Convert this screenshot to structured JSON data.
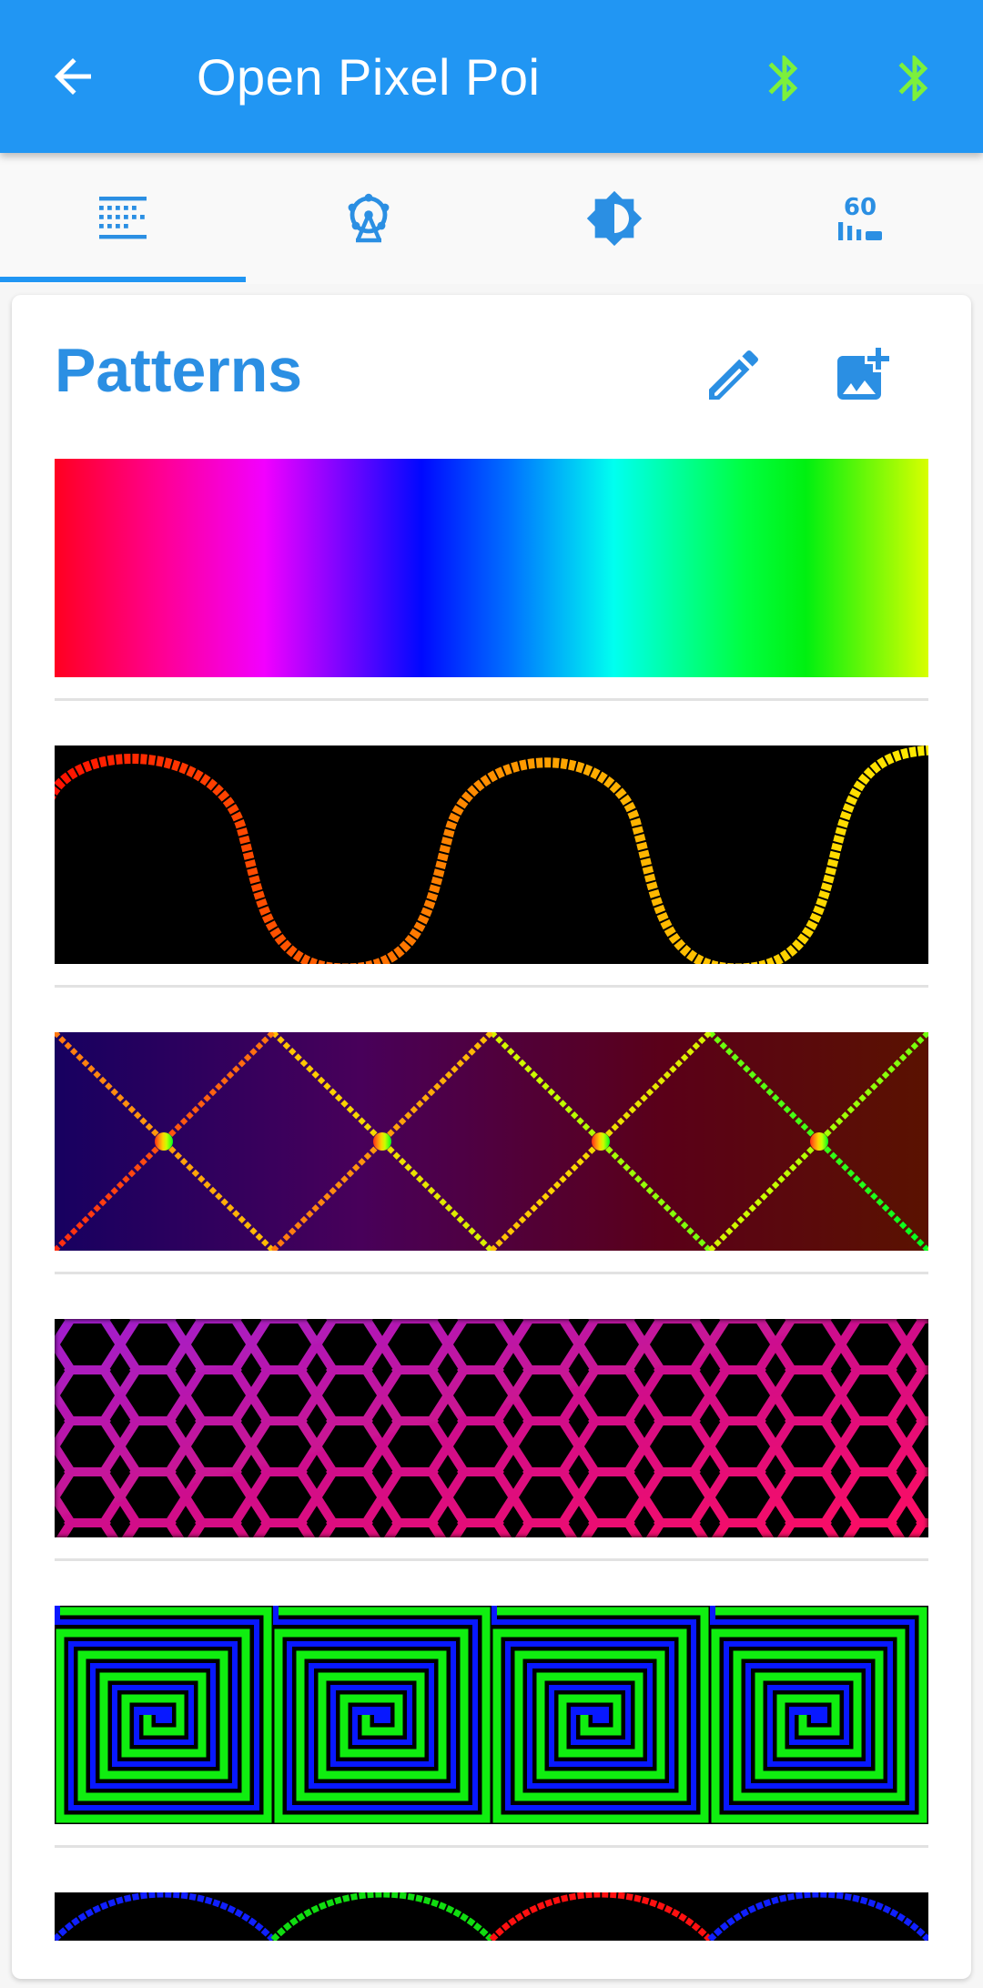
{
  "appbar": {
    "title": "Open Pixel Poi",
    "back_icon": "arrow-back-icon",
    "status_icons": [
      "bluetooth-icon",
      "bluetooth-icon"
    ],
    "status_color": "#7cf03c",
    "background": "#2196f3"
  },
  "tabs": [
    {
      "icon": "patterns-icon",
      "selected": true
    },
    {
      "icon": "ferris-wheel-icon",
      "selected": false
    },
    {
      "icon": "brightness-icon",
      "selected": false
    },
    {
      "icon": "speed-60-icon",
      "selected": false,
      "text": "60"
    }
  ],
  "card": {
    "title": "Patterns",
    "actions": [
      "edit-icon",
      "add-image-icon"
    ],
    "accent": "#2b8fe3"
  },
  "patterns": [
    {
      "name": "rainbow-gradient"
    },
    {
      "name": "orange-sine-wave"
    },
    {
      "name": "diamond-lattice"
    },
    {
      "name": "hexagon-mesh"
    },
    {
      "name": "green-blue-spirals"
    },
    {
      "name": "scallop-waves"
    }
  ]
}
